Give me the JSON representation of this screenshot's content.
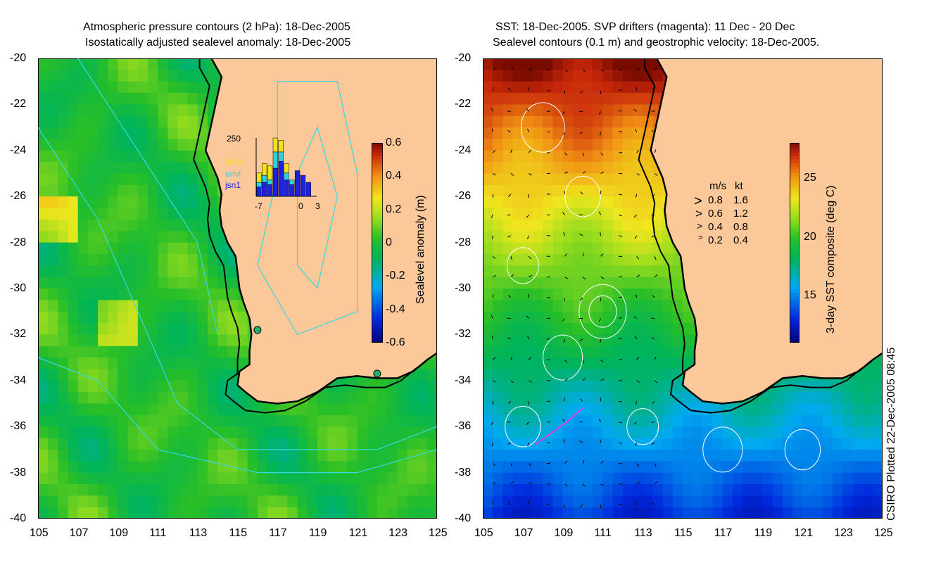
{
  "left_title": {
    "line1": "Atmospheric pressure contours (2 hPa): 18-Dec-2005",
    "line2": "Isostatically adjusted sealevel anomaly: 18-Dec-2005"
  },
  "right_title": {
    "line1": "SST: 18-Dec-2005. SVP drifters (magenta): 11 Dec - 20 Dec",
    "line2": "Sealevel contours (0.1 m) and geostrophic velocity: 18-Dec-2005."
  },
  "credit": "CSIRO Plotted 22-Dec-2005 08:45",
  "colors": {
    "land": "#FBC89A",
    "coast": "#000000",
    "pressure_contour": "#38D8E0",
    "sealevel_contour": "#ffffff",
    "drifter": "#E040E0",
    "altimetry_gfo": "#F0E020",
    "altimetry_envi": "#30D0E0",
    "altimetry_jsn1": "#2020E0"
  },
  "chart_data": [
    {
      "type": "heatmap",
      "title": "Isostatically adjusted sealevel anomaly: 18-Dec-2005",
      "xlim": [
        105,
        125
      ],
      "ylim": [
        -40,
        -20
      ],
      "x_ticks": [
        "105",
        "107",
        "109",
        "111",
        "113",
        "115",
        "117",
        "119",
        "121",
        "123",
        "125"
      ],
      "y_ticks": [
        "-20",
        "-22",
        "-24",
        "-26",
        "-28",
        "-30",
        "-32",
        "-34",
        "-36",
        "-38",
        "-40"
      ],
      "colorbar": {
        "label": "Sealevel anomaly (m)",
        "range": [
          -0.6,
          0.6
        ],
        "ticks": [
          "0.6",
          "0.4",
          "0.2",
          "0",
          "-0.2",
          "-0.4",
          "-0.6"
        ]
      },
      "stations": [
        {
          "lon": 116.0,
          "lat": -31.8
        },
        {
          "lon": 122.0,
          "lat": -33.7
        }
      ],
      "inset_histogram": {
        "ymax": "250",
        "x_ticks": [
          "-7",
          "0",
          "3"
        ],
        "legend": [
          "GFO",
          "envi",
          "jsn1"
        ],
        "days": [
          -7,
          -6,
          -5,
          -4,
          -3,
          -2,
          -1,
          0,
          1,
          2,
          3
        ],
        "jsn1": [
          40,
          60,
          50,
          120,
          150,
          70,
          50,
          110,
          90,
          60,
          0
        ],
        "envi": [
          20,
          30,
          20,
          70,
          40,
          30,
          20,
          0,
          0,
          0,
          0
        ],
        "gfo": [
          40,
          50,
          60,
          60,
          50,
          40,
          0,
          0,
          0,
          0,
          0
        ]
      }
    },
    {
      "type": "heatmap",
      "title": "SST: 18-Dec-2005. SVP drifters (magenta): 11 Dec - 20 Dec",
      "xlim": [
        105,
        125
      ],
      "ylim": [
        -40,
        -20
      ],
      "x_ticks": [
        "105",
        "107",
        "109",
        "111",
        "113",
        "115",
        "117",
        "119",
        "121",
        "123",
        "125"
      ],
      "y_ticks": [
        "-20",
        "-22",
        "-24",
        "-26",
        "-28",
        "-30",
        "-32",
        "-34",
        "-36",
        "-38",
        "-40"
      ],
      "colorbar": {
        "label": "3-day SST composite (deg C)",
        "range": [
          11,
          28
        ],
        "ticks": [
          "25",
          "20",
          "15"
        ]
      },
      "velocity_legend": {
        "header_ms": "m/s",
        "header_kt": "kt",
        "rows": [
          {
            "ms": "0.8",
            "kt": "1.6"
          },
          {
            "ms": "0.6",
            "kt": "1.2"
          },
          {
            "ms": "0.4",
            "kt": "0.8"
          },
          {
            "ms": "0.2",
            "kt": "0.4"
          }
        ]
      }
    }
  ]
}
